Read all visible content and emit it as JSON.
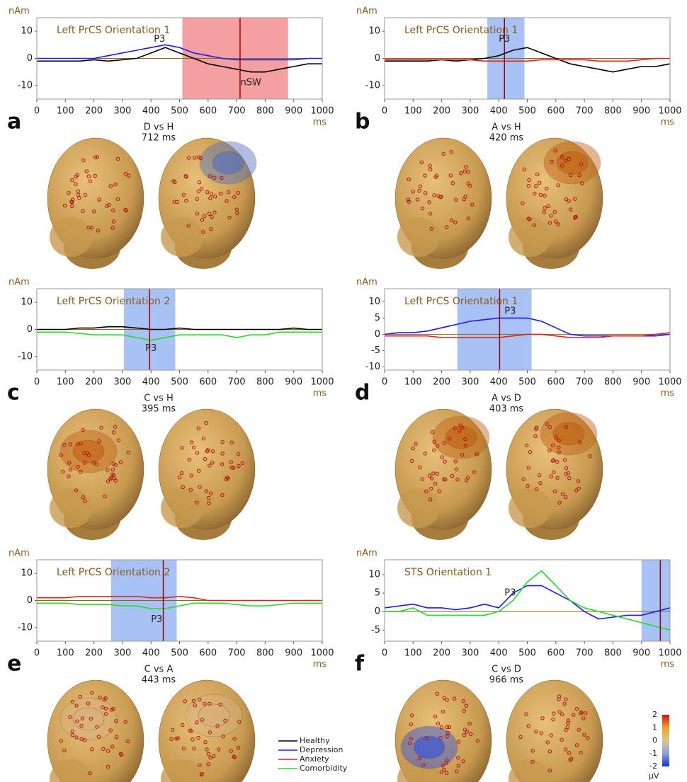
{
  "chart_data": [
    {
      "type": "line",
      "panel": "a",
      "title": "Left PrCS Orientation 1",
      "y_unit": "nAm",
      "x_unit": "ms",
      "comparison": "D vs H",
      "cursor": 712,
      "cursor_label": "712 ms",
      "highlight": [
        510,
        880
      ],
      "highlight_color": "#f4a0a0",
      "xlim": [
        0,
        1000
      ],
      "xticks": [
        0,
        100,
        200,
        300,
        400,
        500,
        600,
        700,
        800,
        900,
        1000
      ],
      "ylim": [
        -15,
        15
      ],
      "yticks": [
        -10,
        0,
        10
      ],
      "x": [
        0,
        50,
        100,
        150,
        200,
        250,
        300,
        350,
        400,
        450,
        500,
        550,
        600,
        650,
        700,
        750,
        800,
        850,
        900,
        950,
        1000
      ],
      "series": [
        {
          "name": "Healthy",
          "values": [
            -1,
            -1,
            -1,
            -1,
            -0.5,
            -1,
            -0.5,
            0,
            2,
            4,
            2,
            0,
            -2,
            -3,
            -4,
            -5,
            -5,
            -4,
            -3,
            -2,
            -2
          ]
        },
        {
          "name": "Depression",
          "values": [
            0,
            0,
            0,
            0,
            0,
            1,
            2,
            3,
            4,
            5,
            4,
            2,
            1,
            0,
            -0.5,
            -0.5,
            -0.5,
            -0.5,
            -0.5,
            0,
            0
          ]
        }
      ],
      "annotations": [
        {
          "text": "P3",
          "x": 430,
          "y": 7
        },
        {
          "text": "nSW",
          "x": 750,
          "y": -9
        }
      ]
    },
    {
      "type": "line",
      "panel": "b",
      "title": "Left PrCS Orientation 1",
      "y_unit": "nAm",
      "x_unit": "ms",
      "comparison": "A vs H",
      "cursor": 420,
      "cursor_label": "420 ms",
      "highlight": [
        360,
        490
      ],
      "highlight_color": "#a9c2f5",
      "xlim": [
        0,
        1000
      ],
      "xticks": [
        0,
        100,
        200,
        300,
        400,
        500,
        600,
        700,
        800,
        900,
        1000
      ],
      "ylim": [
        -15,
        15
      ],
      "yticks": [
        -10,
        0,
        10
      ],
      "x": [
        0,
        50,
        100,
        150,
        200,
        250,
        300,
        350,
        400,
        450,
        500,
        550,
        600,
        650,
        700,
        750,
        800,
        850,
        900,
        950,
        1000
      ],
      "series": [
        {
          "name": "Healthy",
          "values": [
            -1,
            -1,
            -1,
            -1,
            -0.5,
            -1,
            -0.5,
            0,
            1,
            3,
            4,
            2,
            0,
            -2,
            -3,
            -4,
            -5,
            -4,
            -3,
            -3,
            -2
          ]
        },
        {
          "name": "Anxiety",
          "values": [
            -0.5,
            -0.5,
            -0.5,
            -0.5,
            -0.5,
            -0.5,
            -0.5,
            -1,
            -1,
            -1,
            -1,
            -0.5,
            -0.5,
            -0.5,
            -0.5,
            -1,
            -1,
            -1,
            -0.5,
            0,
            0
          ]
        }
      ],
      "annotations": [
        {
          "text": "P3",
          "x": 420,
          "y": 7
        }
      ]
    },
    {
      "type": "line",
      "panel": "c",
      "title": "Left PrCS Orientation 2",
      "y_unit": "nAm",
      "x_unit": "ms",
      "comparison": "C vs H",
      "cursor": 395,
      "cursor_label": "395 ms",
      "highlight": [
        305,
        485
      ],
      "highlight_color": "#a9c2f5",
      "xlim": [
        0,
        1000
      ],
      "xticks": [
        0,
        100,
        200,
        300,
        400,
        500,
        600,
        700,
        800,
        900,
        1000
      ],
      "ylim": [
        -15,
        15
      ],
      "yticks": [
        -10,
        0,
        10
      ],
      "x": [
        0,
        50,
        100,
        150,
        200,
        250,
        300,
        350,
        400,
        450,
        500,
        550,
        600,
        650,
        700,
        750,
        800,
        850,
        900,
        950,
        1000
      ],
      "series": [
        {
          "name": "Healthy",
          "values": [
            0,
            0,
            0,
            0.5,
            0.5,
            1,
            1,
            0.5,
            0,
            0,
            0.5,
            0,
            0,
            0,
            0,
            0,
            0,
            0,
            0.5,
            0,
            0
          ]
        },
        {
          "name": "Comorbidity",
          "values": [
            -1,
            -1,
            -1,
            -1.5,
            -2,
            -2,
            -2,
            -3,
            -4,
            -3,
            -2,
            -2,
            -2,
            -2,
            -3,
            -2,
            -2,
            -1,
            -1,
            -1,
            -1
          ]
        }
      ],
      "annotations": [
        {
          "text": "P3",
          "x": 400,
          "y": -7
        }
      ]
    },
    {
      "type": "line",
      "panel": "d",
      "title": "Left PrCS Orientation 1",
      "y_unit": "nAm",
      "x_unit": "ms",
      "comparison": "A vs D",
      "cursor": 403,
      "cursor_label": "403 ms",
      "highlight": [
        255,
        515
      ],
      "highlight_color": "#a9c2f5",
      "xlim": [
        0,
        1000
      ],
      "xticks": [
        0,
        100,
        200,
        300,
        400,
        500,
        600,
        700,
        800,
        900,
        1000
      ],
      "ylim": [
        -11,
        14
      ],
      "yticks": [
        -10,
        -5,
        0,
        5,
        10
      ],
      "x": [
        0,
        50,
        100,
        150,
        200,
        250,
        300,
        350,
        400,
        450,
        500,
        550,
        600,
        650,
        700,
        750,
        800,
        850,
        900,
        950,
        1000
      ],
      "series": [
        {
          "name": "Depression",
          "values": [
            0,
            0.5,
            0.5,
            1,
            2,
            3,
            4,
            4.5,
            5,
            5,
            5,
            4,
            2,
            0,
            -0.5,
            -0.5,
            -0.5,
            -0.5,
            -0.5,
            -0.5,
            0
          ]
        },
        {
          "name": "Anxiety",
          "values": [
            -0.5,
            -0.5,
            -0.5,
            -0.5,
            -1,
            -1,
            -1,
            -1,
            -1,
            -0.5,
            0,
            0,
            -0.5,
            -1,
            -1,
            -1,
            -0.5,
            -0.5,
            -0.5,
            0,
            0.5
          ]
        }
      ],
      "annotations": [
        {
          "text": "P3",
          "x": 440,
          "y": 7
        }
      ]
    },
    {
      "type": "line",
      "panel": "e",
      "title": "Left PrCS Orientation 2",
      "y_unit": "nAm",
      "x_unit": "ms",
      "comparison": "C vs A",
      "cursor": 443,
      "cursor_label": "443 ms",
      "highlight": [
        260,
        490
      ],
      "highlight_color": "#a9c2f5",
      "xlim": [
        0,
        1000
      ],
      "xticks": [
        0,
        100,
        200,
        300,
        400,
        500,
        600,
        700,
        800,
        900,
        1000
      ],
      "ylim": [
        -15,
        15
      ],
      "yticks": [
        -10,
        0,
        10
      ],
      "x": [
        0,
        50,
        100,
        150,
        200,
        250,
        300,
        350,
        400,
        450,
        500,
        550,
        600,
        650,
        700,
        750,
        800,
        850,
        900,
        950,
        1000
      ],
      "series": [
        {
          "name": "Anxiety",
          "values": [
            1,
            1,
            1,
            1.5,
            1.5,
            1.5,
            1.5,
            1.5,
            1,
            1,
            1.5,
            1,
            0,
            0,
            0,
            0,
            0,
            0,
            0,
            0,
            0
          ]
        },
        {
          "name": "Comorbidity",
          "values": [
            -1,
            -1,
            -1,
            -1.5,
            -1.5,
            -1.5,
            -2,
            -2,
            -3,
            -3,
            -2,
            -1,
            -1,
            -1,
            -1.5,
            -2,
            -2,
            -1.5,
            -1,
            -1,
            -1
          ]
        }
      ],
      "annotations": [
        {
          "text": "P3",
          "x": 420,
          "y": -7
        }
      ]
    },
    {
      "type": "line",
      "panel": "f",
      "title": "STS Orientation 1",
      "y_unit": "nAm",
      "x_unit": "ms",
      "comparison": "C vs D",
      "cursor": 966,
      "cursor_label": "966 ms",
      "highlight": [
        900,
        1000
      ],
      "highlight_color": "#a9c2f5",
      "xlim": [
        0,
        1000
      ],
      "xticks": [
        0,
        100,
        200,
        300,
        400,
        500,
        600,
        700,
        800,
        900,
        1000
      ],
      "ylim": [
        -8,
        14
      ],
      "yticks": [
        -5,
        0,
        5,
        10
      ],
      "x": [
        0,
        50,
        100,
        150,
        200,
        250,
        300,
        350,
        400,
        450,
        500,
        550,
        600,
        650,
        700,
        750,
        800,
        850,
        900,
        950,
        1000
      ],
      "series": [
        {
          "name": "Depression",
          "values": [
            1,
            1.5,
            2,
            1,
            1,
            0.5,
            1,
            2,
            1,
            5,
            7,
            7,
            5,
            3,
            0,
            -2,
            -1.5,
            -1,
            -1,
            0,
            1
          ]
        },
        {
          "name": "Comorbidity",
          "values": [
            0,
            0,
            1,
            -1,
            -1,
            -1,
            -1,
            -1,
            0,
            3,
            8,
            11,
            7,
            3,
            1,
            0,
            -1,
            -2,
            -3,
            -4,
            -5
          ]
        }
      ],
      "annotations": [
        {
          "text": "P3",
          "x": 440,
          "y": 5
        }
      ]
    }
  ],
  "legend": [
    {
      "name": "Healthy",
      "color": "#000000"
    },
    {
      "name": "Depression",
      "color": "#1a1aff"
    },
    {
      "name": "Anxiety",
      "color": "#e02020"
    },
    {
      "name": "Comorbidity",
      "color": "#22dd22"
    }
  ],
  "colorbar": {
    "ticks": [
      2,
      1,
      0,
      -1,
      -2
    ],
    "lim": [
      -2,
      2
    ],
    "unit": "μV"
  }
}
